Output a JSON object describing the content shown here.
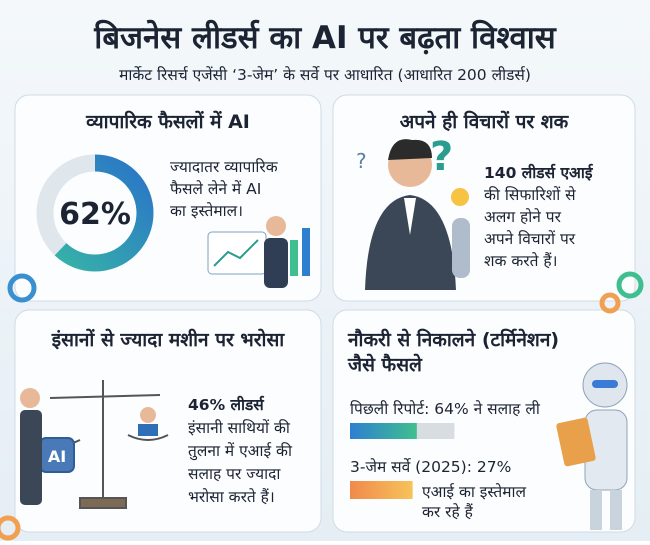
{
  "header": {
    "title": "बिजनेस लीडर्स का AI पर बढ़ता विश्वास",
    "subtitle": "मार्केट रिसर्च एजेंसी ‘3-जेम’ के सर्वे पर आधारित (आधारित 200 लीडर्स)"
  },
  "panels": [
    {
      "title": "व्यापारिक फैसलों में AI",
      "value": 62,
      "value_label": "62%",
      "lines": [
        "ज्यादातर व्यापारिक",
        "फैसले लेने में AI",
        "का इस्तेमाल।"
      ]
    },
    {
      "title": "अपने ही विचारों पर शक",
      "lines": [
        "140 लीडर्स एआई",
        "की सिफारिशों से",
        "अलग होने पर",
        "अपने विचारों पर",
        "शक करते हैं।"
      ]
    },
    {
      "title": "इंसानों से ज्यादा मशीन पर भरोसा",
      "lines": [
        "46% लीडर्स",
        "इंसानी साथियों की",
        "तुलना में एआई की",
        "सलाह पर ज्यादा",
        "भरोसा करते हैं।"
      ],
      "badge": "AI"
    },
    {
      "title_lines": [
        "नौकरी से निकालने (टर्मिनेशन)",
        "जैसे फैसले"
      ],
      "bars": [
        {
          "label": "पिछली रिपोर्ट: 64% ने सलाह ली",
          "value": 64
        },
        {
          "label": "3-जेम सर्वे (2025): 27%",
          "value": 27,
          "note_lines": [
            "एआई का इस्तेमाल",
            "कर रहे हैं"
          ]
        }
      ]
    }
  ]
}
